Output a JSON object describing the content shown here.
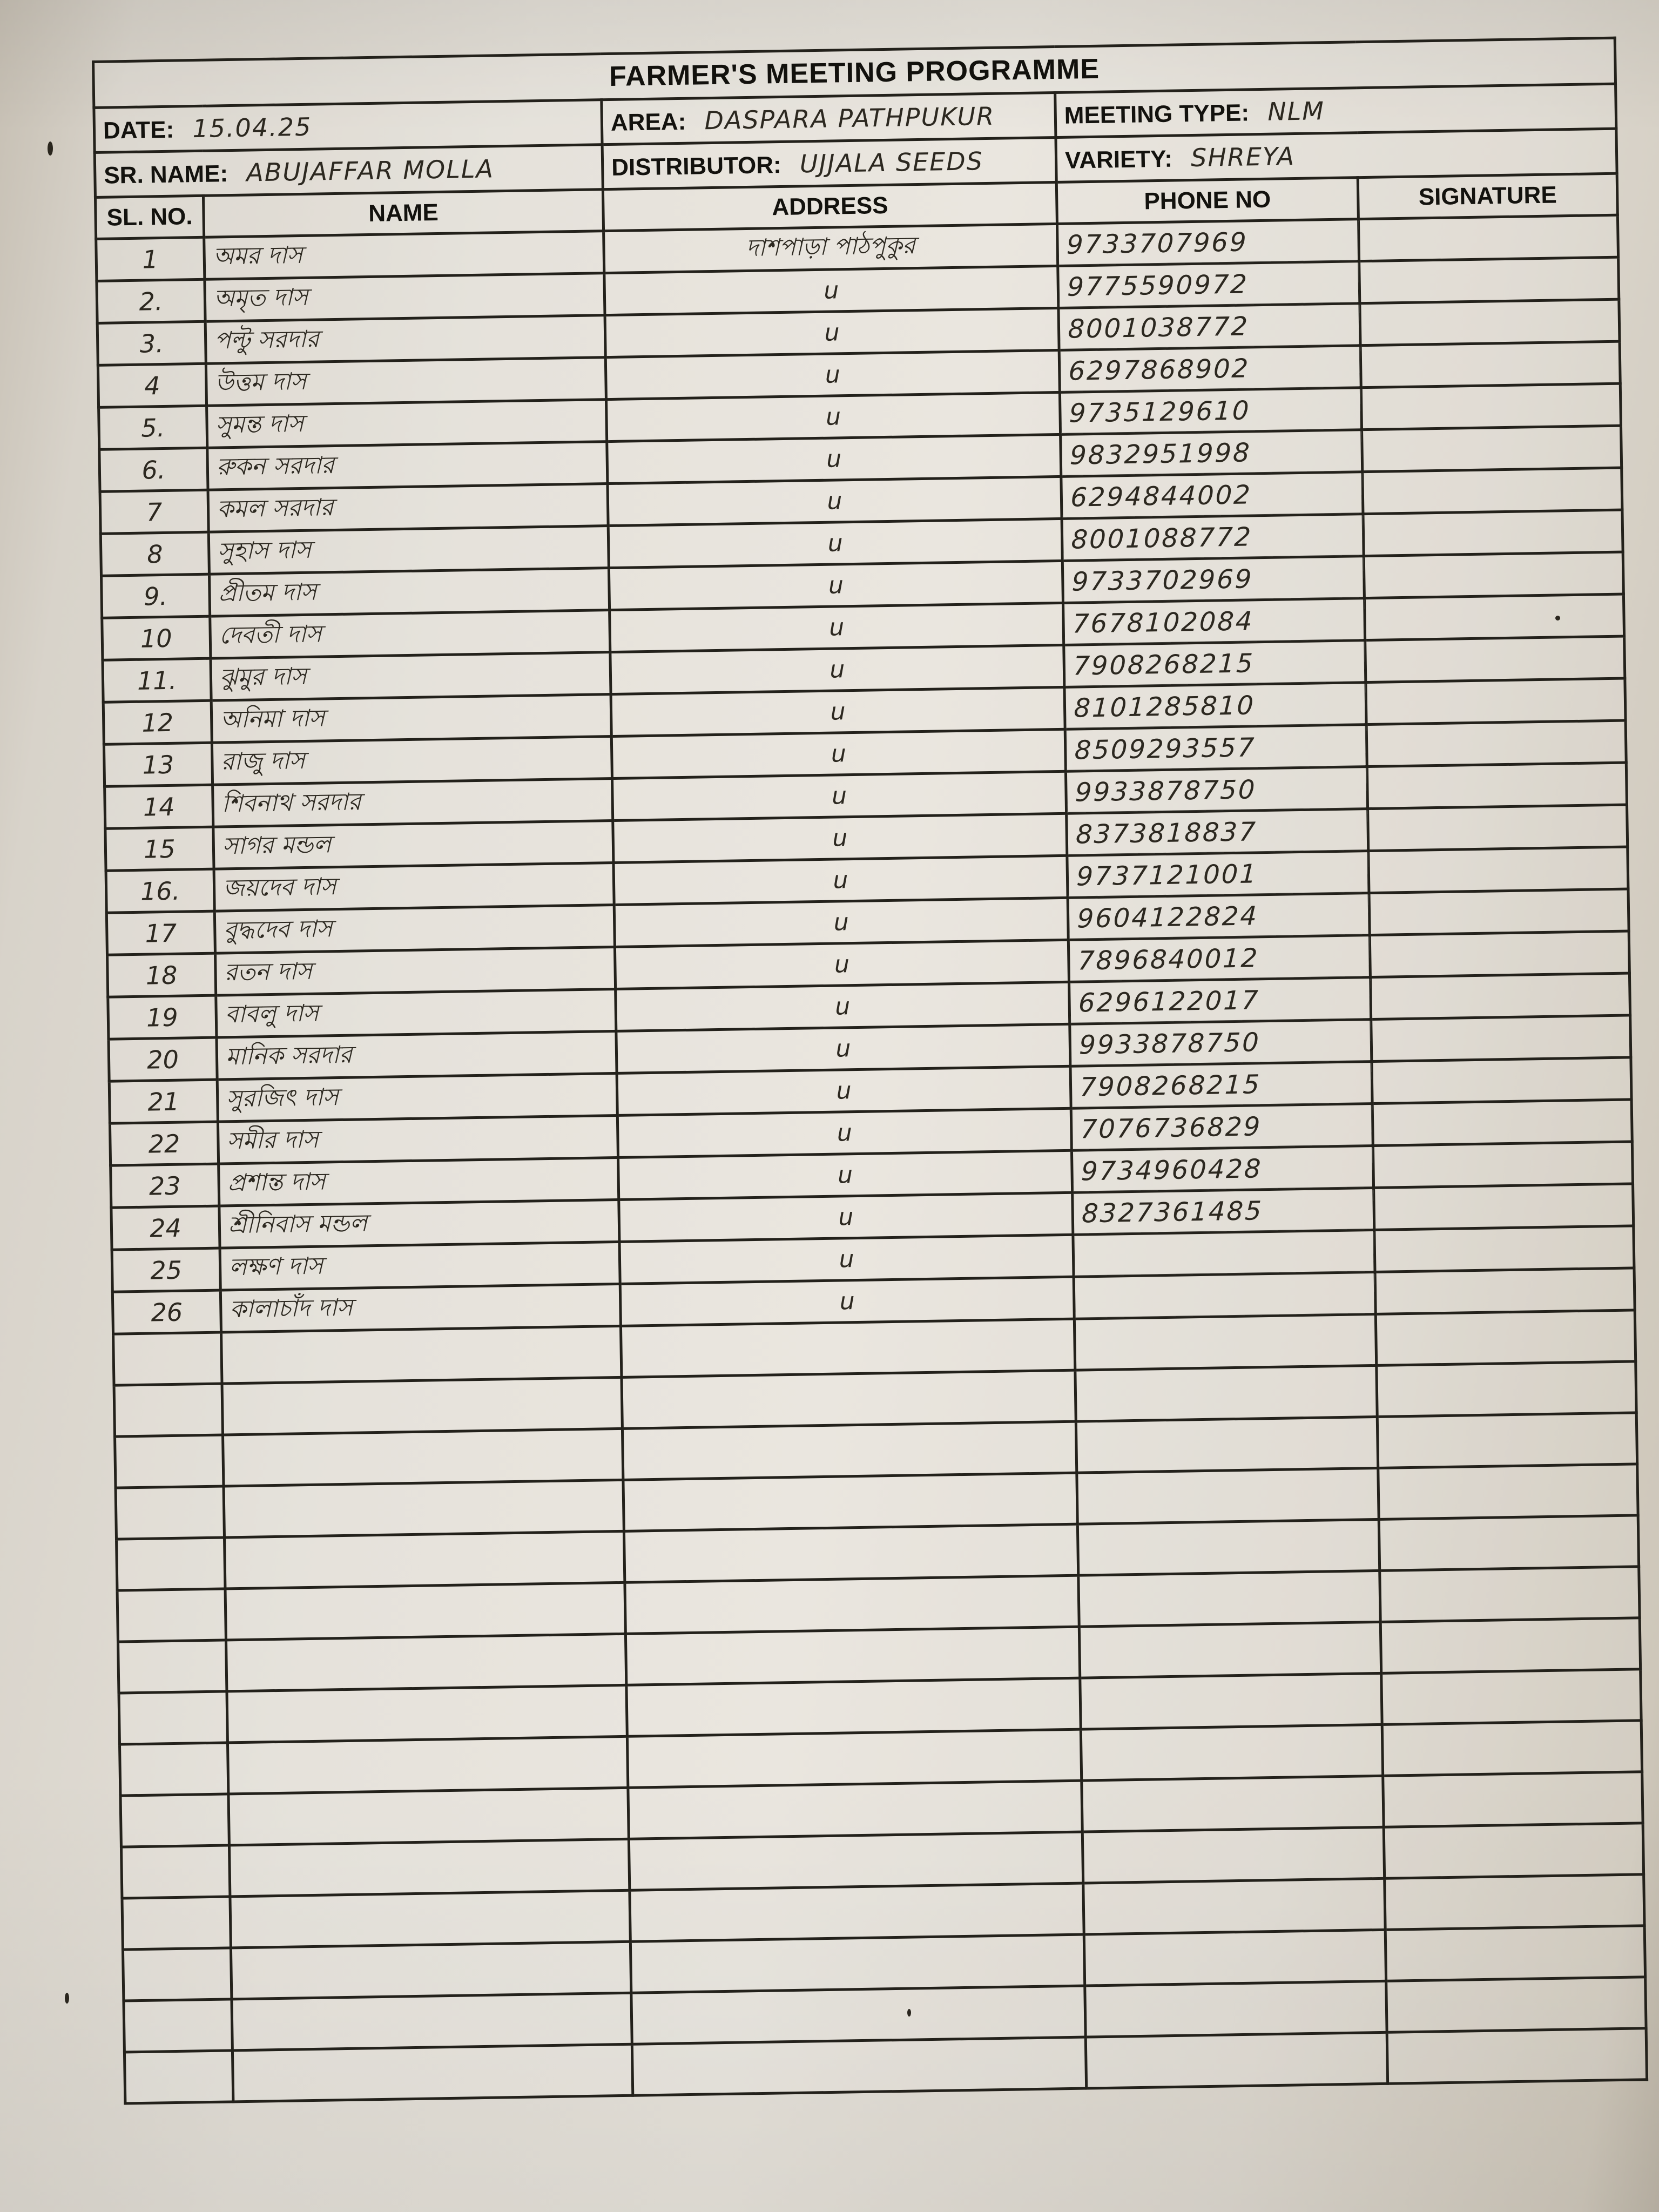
{
  "title": "FARMER'S MEETING PROGRAMME",
  "meta": {
    "date_label": "DATE:",
    "date_value": "15.04.25",
    "area_label": "AREA:",
    "area_value": "DASPARA PATHPUKUR",
    "meeting_type_label": "MEETING TYPE:",
    "meeting_type_value": "NLM",
    "sr_name_label": "SR. NAME:",
    "sr_name_value": "ABUJAFFAR MOLLA",
    "distributor_label": "DISTRIBUTOR:",
    "distributor_value": "UJJALA SEEDS",
    "variety_label": "VARIETY:",
    "variety_value": "SHREYA"
  },
  "table": {
    "headers": [
      "SL. NO.",
      "NAME",
      "ADDRESS",
      "PHONE NO",
      "SIGNATURE"
    ],
    "rows": [
      {
        "sl": "1",
        "name": "অমর দাস",
        "address": "দাশপাড়া পাঠপুকুর",
        "phone": "9733707969",
        "signature": ""
      },
      {
        "sl": "2.",
        "name": "অমৃত দাস",
        "address": "u",
        "phone": "9775590972",
        "signature": ""
      },
      {
        "sl": "3.",
        "name": "পল্টু সরদার",
        "address": "u",
        "phone": "8001038772",
        "signature": ""
      },
      {
        "sl": "4",
        "name": "উত্তম দাস",
        "address": "u",
        "phone": "6297868902",
        "signature": ""
      },
      {
        "sl": "5.",
        "name": "সুমন্ত দাস",
        "address": "u",
        "phone": "9735129610",
        "signature": ""
      },
      {
        "sl": "6.",
        "name": "রুকন সরদার",
        "address": "u",
        "phone": "9832951998",
        "signature": ""
      },
      {
        "sl": "7",
        "name": "কমল সরদার",
        "address": "u",
        "phone": "6294844002",
        "signature": ""
      },
      {
        "sl": "8",
        "name": "সুহাস দাস",
        "address": "u",
        "phone": "8001088772",
        "signature": ""
      },
      {
        "sl": "9.",
        "name": "প্রীতম দাস",
        "address": "u",
        "phone": "9733702969",
        "signature": ""
      },
      {
        "sl": "10",
        "name": "দেবতী দাস",
        "address": "u",
        "phone": "7678102084",
        "signature": ""
      },
      {
        "sl": "11.",
        "name": "ঝুমুর দাস",
        "address": "u",
        "phone": "7908268215",
        "signature": ""
      },
      {
        "sl": "12",
        "name": "অনিমা দাস",
        "address": "u",
        "phone": "8101285810",
        "signature": ""
      },
      {
        "sl": "13",
        "name": "রাজু দাস",
        "address": "u",
        "phone": "8509293557",
        "signature": ""
      },
      {
        "sl": "14",
        "name": "শিবনাথ সরদার",
        "address": "u",
        "phone": "9933878750",
        "signature": ""
      },
      {
        "sl": "15",
        "name": "সাগর মন্ডল",
        "address": "u",
        "phone": "8373818837",
        "signature": ""
      },
      {
        "sl": "16.",
        "name": "জয়দেব দাস",
        "address": "u",
        "phone": "9737121001",
        "signature": ""
      },
      {
        "sl": "17",
        "name": "বুদ্ধদেব দাস",
        "address": "u",
        "phone": "9604122824",
        "signature": ""
      },
      {
        "sl": "18",
        "name": "রতন দাস",
        "address": "u",
        "phone": "7896840012",
        "signature": ""
      },
      {
        "sl": "19",
        "name": "বাবলু দাস",
        "address": "u",
        "phone": "6296122017",
        "signature": ""
      },
      {
        "sl": "20",
        "name": "মানিক সরদার",
        "address": "u",
        "phone": "9933878750",
        "signature": ""
      },
      {
        "sl": "21",
        "name": "সুরজিৎ দাস",
        "address": "u",
        "phone": "7908268215",
        "signature": ""
      },
      {
        "sl": "22",
        "name": "সমীর দাস",
        "address": "u",
        "phone": "7076736829",
        "signature": ""
      },
      {
        "sl": "23",
        "name": "প্রশান্ত দাস",
        "address": "u",
        "phone": "9734960428",
        "signature": ""
      },
      {
        "sl": "24",
        "name": "শ্রীনিবাস মন্ডল",
        "address": "u",
        "phone": "8327361485",
        "signature": ""
      },
      {
        "sl": "25",
        "name": "লক্ষণ দাস",
        "address": "u",
        "phone": "",
        "signature": ""
      },
      {
        "sl": "26",
        "name": "কালাচাঁদ দাস",
        "address": "u",
        "phone": "",
        "signature": ""
      }
    ],
    "empty_row_count": 15
  }
}
